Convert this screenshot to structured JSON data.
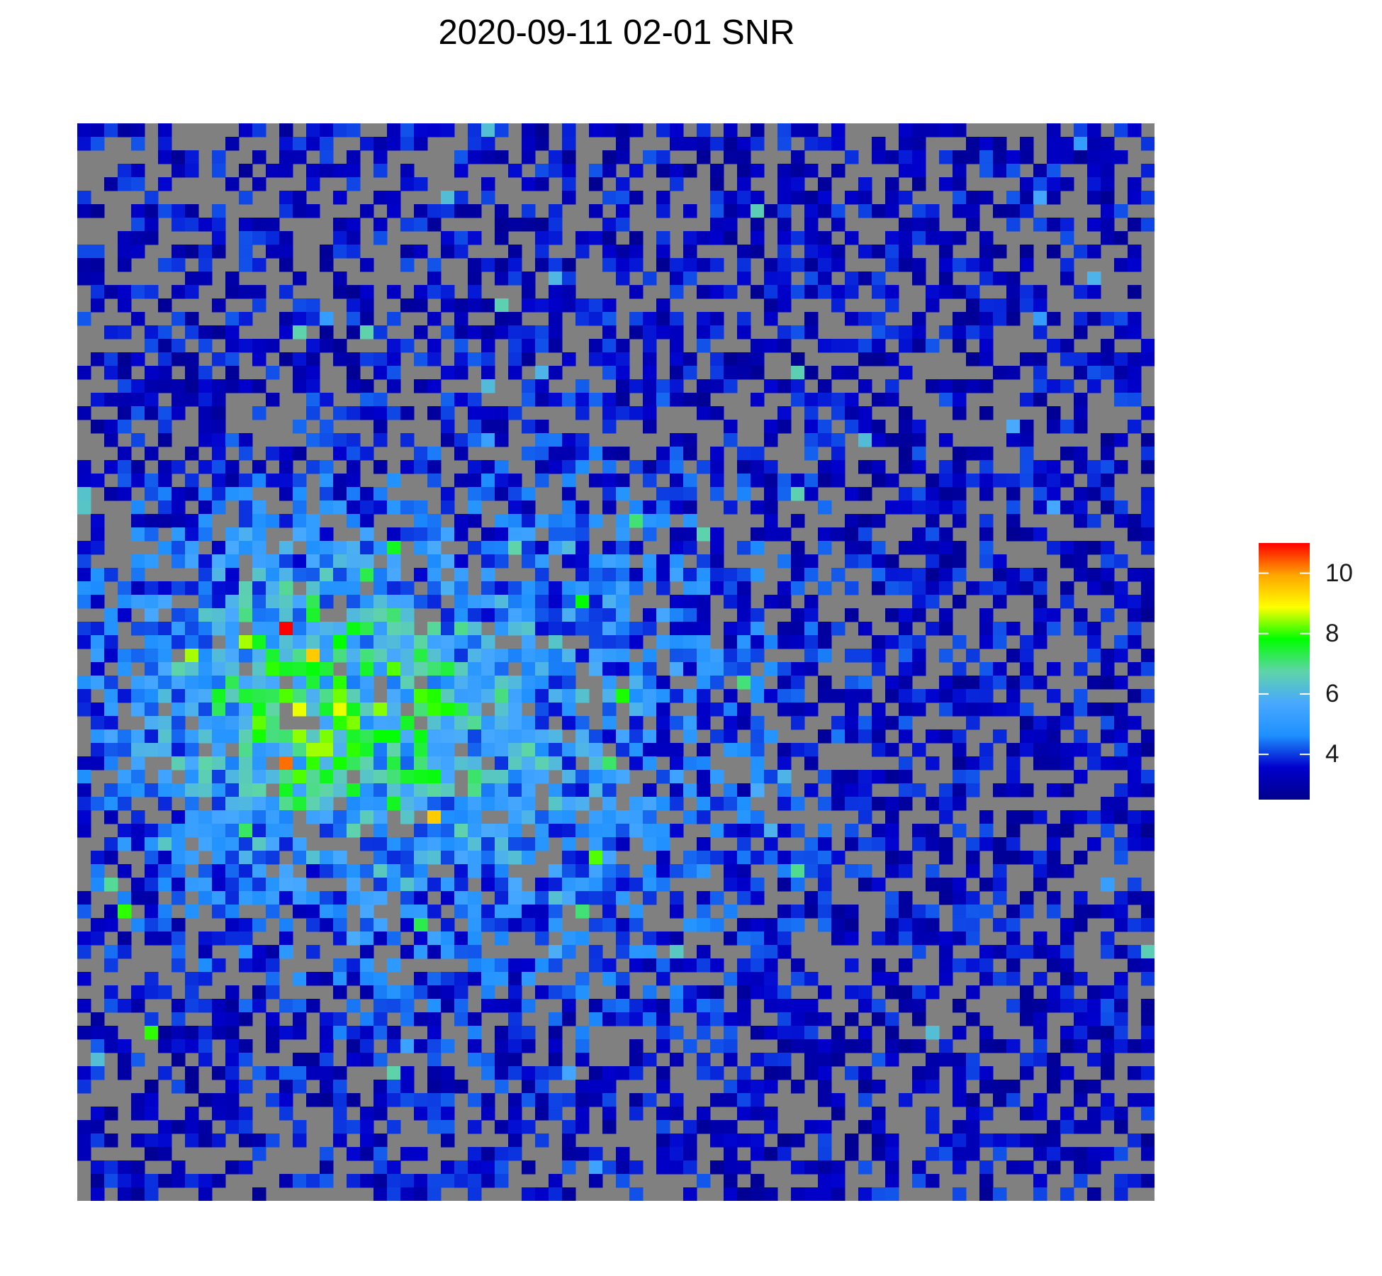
{
  "chart_data": {
    "type": "heatmap",
    "title": "2020-09-11 02-01  SNR",
    "grid_size": [
      80,
      80
    ],
    "value_range": [
      2.5,
      11
    ],
    "na_color": "#808080",
    "colorscale": [
      "#00008b",
      "#0000cd",
      "#1e90ff",
      "#48a8ff",
      "#5fd4a8",
      "#00ff00",
      "#ffff00",
      "#ffa500",
      "#ff0000"
    ],
    "colorbar": {
      "ticks": [
        "4",
        "6",
        "8",
        "10"
      ],
      "tick_values": [
        4,
        6,
        8,
        10
      ],
      "range": [
        2.5,
        11
      ],
      "placement": "right"
    },
    "hotspots": [
      {
        "x": 15,
        "y": 37,
        "value": 11
      },
      {
        "x": 17,
        "y": 39,
        "value": 9.5
      },
      {
        "x": 12,
        "y": 38,
        "value": 8.5
      },
      {
        "x": 8,
        "y": 39,
        "value": 8.5
      },
      {
        "x": 14,
        "y": 40,
        "value": 8
      },
      {
        "x": 20,
        "y": 46,
        "value": 8
      },
      {
        "x": 3,
        "y": 58,
        "value": 8
      },
      {
        "x": 5,
        "y": 67,
        "value": 8
      }
    ],
    "colorbar_title": ""
  }
}
